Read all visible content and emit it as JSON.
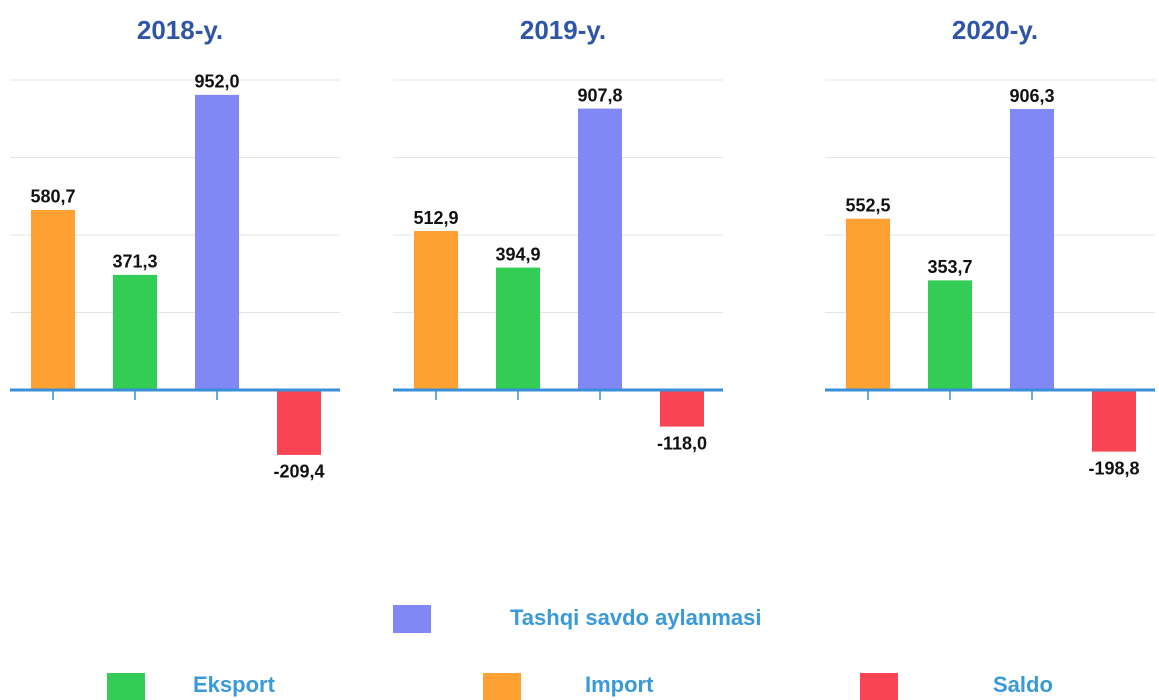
{
  "chart_data": {
    "type": "bar",
    "categories": [
      "2018-y.",
      "2019-y.",
      "2020-y."
    ],
    "series": [
      {
        "name": "Import",
        "color": "#ffa033",
        "values": [
          580.7,
          512.9,
          552.5
        ],
        "value_labels": [
          "580,7",
          "512,9",
          "552,5"
        ]
      },
      {
        "name": "Eksport",
        "color": "#33cc55",
        "values": [
          371.3,
          394.9,
          353.7
        ],
        "value_labels": [
          "371,3",
          "394,9",
          "353,7"
        ]
      },
      {
        "name": "Tashqi savdo aylanmasi",
        "color": "#8088f5",
        "values": [
          952.0,
          907.8,
          906.3
        ],
        "value_labels": [
          "952,0",
          "907,8",
          "906,3"
        ]
      },
      {
        "name": "Saldo",
        "color": "#f84455",
        "values": [
          -209.4,
          -118.0,
          -198.8
        ],
        "value_labels": [
          "-209,4",
          "-118,0",
          "-198,8"
        ]
      }
    ],
    "ylim": [
      -550,
      1000
    ],
    "yticks": [
      0,
      250,
      500,
      750,
      1000
    ],
    "grid": true
  }
}
